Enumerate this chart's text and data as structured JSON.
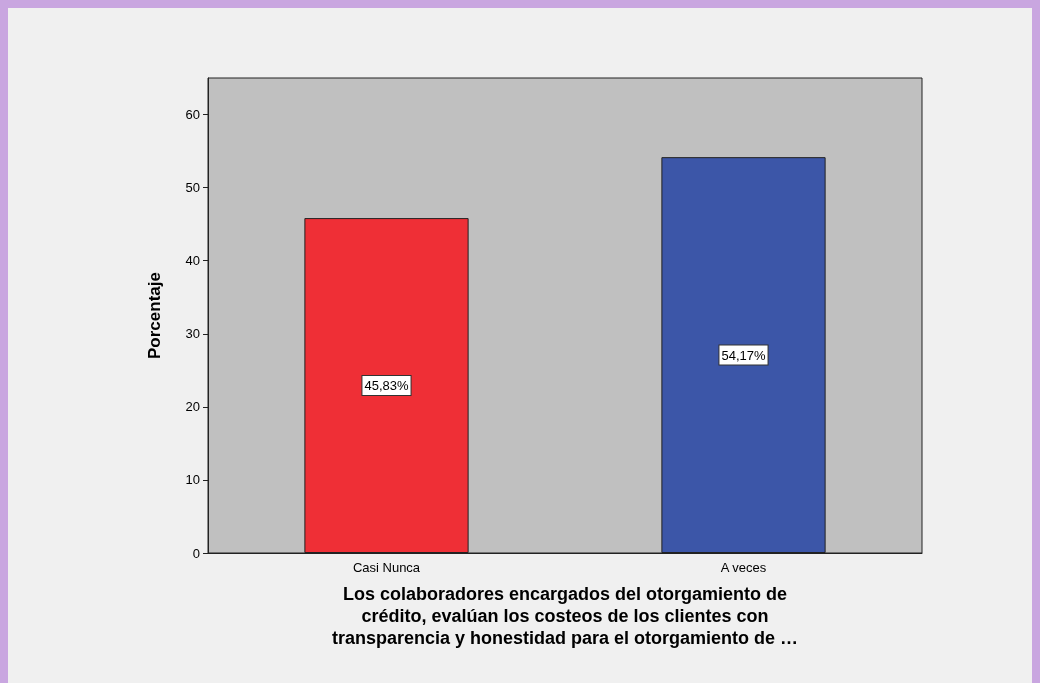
{
  "chart_data": {
    "type": "bar",
    "categories": [
      "Casi Nunca",
      "A veces"
    ],
    "values": [
      45.83,
      54.17
    ],
    "colors": [
      "#ef2f36",
      "#3c56a8"
    ],
    "value_labels": [
      "45,83%",
      "54,17%"
    ],
    "ylabel": "Porcentaje",
    "xlabel": "Los colaboradores encargados del otorgamiento de\ncrédito, evalúan los costeos de los clientes con\ntransparencia y honestidad para el otorgamiento de …",
    "ylim": [
      0,
      65
    ],
    "yticks": [
      0,
      10,
      20,
      30,
      40,
      50,
      60
    ]
  }
}
